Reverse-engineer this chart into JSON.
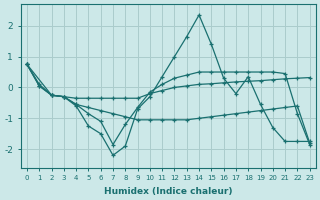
{
  "xlabel": "Humidex (Indice chaleur)",
  "ylabel": "",
  "xlim": [
    -0.5,
    23.5
  ],
  "ylim": [
    -2.6,
    2.7
  ],
  "bg_color": "#cce8e8",
  "grid_color": "#aacccc",
  "line_color": "#1a7070",
  "lines": [
    {
      "x": [
        0,
        1,
        2,
        3,
        4,
        5,
        6,
        7,
        8,
        9,
        10,
        11,
        12,
        13,
        14,
        15,
        16,
        17,
        18,
        19,
        20,
        21,
        22,
        23
      ],
      "y": [
        0.75,
        0.1,
        -0.25,
        -0.3,
        -0.6,
        -1.25,
        -1.5,
        -2.2,
        -1.9,
        -0.7,
        -0.3,
        0.35,
        1.0,
        1.65,
        2.35,
        1.4,
        0.3,
        -0.2,
        0.35,
        -0.55,
        -1.3,
        -1.75,
        -1.75,
        -1.75
      ]
    },
    {
      "x": [
        0,
        1,
        2,
        3,
        4,
        5,
        6,
        7,
        8,
        9,
        10,
        11,
        12,
        13,
        14,
        15,
        16,
        17,
        18,
        19,
        20,
        21,
        22,
        23
      ],
      "y": [
        0.75,
        0.05,
        -0.25,
        -0.3,
        -0.55,
        -0.85,
        -1.1,
        -1.85,
        -1.2,
        -0.65,
        -0.15,
        0.1,
        0.3,
        0.4,
        0.5,
        0.5,
        0.5,
        0.5,
        0.5,
        0.5,
        0.5,
        0.45,
        -0.85,
        -1.85
      ]
    },
    {
      "x": [
        0,
        1,
        2,
        3,
        4,
        5,
        6,
        7,
        8,
        9,
        10,
        11,
        12,
        13,
        14,
        15,
        16,
        17,
        18,
        19,
        20,
        21,
        22,
        23
      ],
      "y": [
        0.75,
        0.05,
        -0.25,
        -0.3,
        -0.35,
        -0.35,
        -0.35,
        -0.35,
        -0.35,
        -0.35,
        -0.2,
        -0.1,
        0.0,
        0.05,
        0.1,
        0.12,
        0.15,
        0.18,
        0.2,
        0.22,
        0.25,
        0.28,
        0.3,
        0.32
      ]
    },
    {
      "x": [
        0,
        2,
        3,
        4,
        5,
        6,
        7,
        8,
        9,
        10,
        11,
        12,
        13,
        14,
        15,
        16,
        17,
        18,
        19,
        20,
        21,
        22,
        23
      ],
      "y": [
        0.75,
        -0.25,
        -0.3,
        -0.55,
        -0.65,
        -0.75,
        -0.85,
        -0.95,
        -1.05,
        -1.05,
        -1.05,
        -1.05,
        -1.05,
        -1.0,
        -0.95,
        -0.9,
        -0.85,
        -0.8,
        -0.75,
        -0.7,
        -0.65,
        -0.6,
        -1.8
      ]
    }
  ],
  "yticks": [
    -2,
    -1,
    0,
    1,
    2
  ],
  "xticks": [
    0,
    1,
    2,
    3,
    4,
    5,
    6,
    7,
    8,
    9,
    10,
    11,
    12,
    13,
    14,
    15,
    16,
    17,
    18,
    19,
    20,
    21,
    22,
    23
  ],
  "marker": "+"
}
